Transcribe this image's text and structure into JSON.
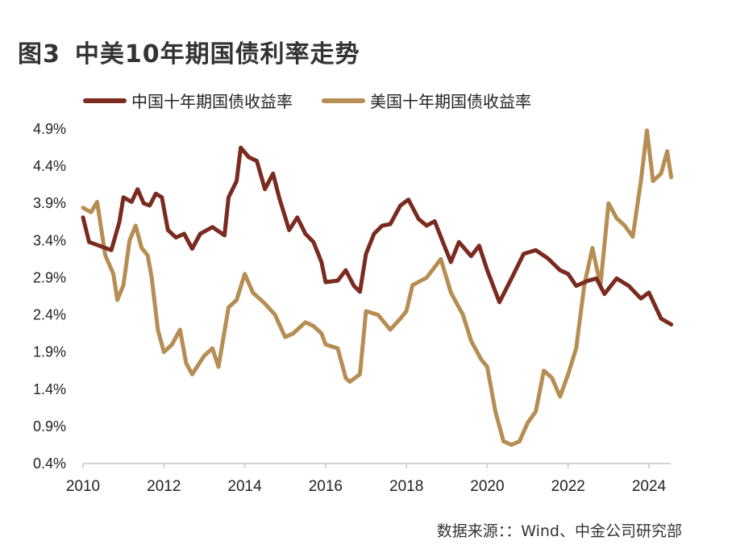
{
  "header": {
    "figure_label": "图3",
    "title": "中美10年期国债利率走势"
  },
  "source": "数据来源：：Wind、中金公司研究部",
  "chart_data": {
    "type": "line",
    "title": "中美10年期国债利率走势",
    "xlabel": "",
    "ylabel": "",
    "xlim": [
      2010,
      2024.55
    ],
    "ylim": [
      0.4,
      4.9
    ],
    "x_ticks": [
      2010,
      2012,
      2014,
      2016,
      2018,
      2020,
      2022,
      2024
    ],
    "x_tick_labels": [
      "2010",
      "2012",
      "2014",
      "2016",
      "2018",
      "2020",
      "2022",
      "2024"
    ],
    "y_ticks": [
      4.9,
      4.4,
      3.9,
      3.4,
      2.9,
      2.4,
      1.9,
      1.4,
      0.9,
      0.4
    ],
    "y_tick_labels": [
      "4.9%",
      "4.4%",
      "3.9%",
      "3.4%",
      "2.9%",
      "2.4%",
      "1.9%",
      "1.4%",
      "0.9%",
      "0.4%"
    ],
    "grid": false,
    "legend_position": "top",
    "series": [
      {
        "name": "中国十年期国债收益率",
        "color": "#7a2a1e",
        "x": [
          2010.0,
          2010.15,
          2010.4,
          2010.7,
          2010.9,
          2011.0,
          2011.2,
          2011.35,
          2011.5,
          2011.65,
          2011.8,
          2011.95,
          2012.1,
          2012.3,
          2012.5,
          2012.7,
          2012.9,
          2013.2,
          2013.5,
          2013.6,
          2013.8,
          2013.9,
          2014.1,
          2014.3,
          2014.5,
          2014.7,
          2014.85,
          2015.1,
          2015.3,
          2015.5,
          2015.7,
          2015.9,
          2016.0,
          2016.3,
          2016.5,
          2016.7,
          2016.85,
          2017.0,
          2017.2,
          2017.4,
          2017.6,
          2017.85,
          2018.05,
          2018.3,
          2018.5,
          2018.7,
          2018.9,
          2019.1,
          2019.3,
          2019.6,
          2019.8,
          2020.0,
          2020.3,
          2020.6,
          2020.9,
          2021.2,
          2021.5,
          2021.8,
          2022.0,
          2022.2,
          2022.5,
          2022.7,
          2022.9,
          2023.2,
          2023.5,
          2023.8,
          2024.0,
          2024.3,
          2024.55
        ],
        "values": [
          3.71,
          3.38,
          3.33,
          3.27,
          3.65,
          3.98,
          3.92,
          4.09,
          3.9,
          3.87,
          4.03,
          3.98,
          3.54,
          3.44,
          3.49,
          3.29,
          3.49,
          3.58,
          3.47,
          3.98,
          4.2,
          4.65,
          4.52,
          4.47,
          4.09,
          4.3,
          3.98,
          3.54,
          3.71,
          3.49,
          3.38,
          3.11,
          2.84,
          2.86,
          3.0,
          2.79,
          2.71,
          3.22,
          3.49,
          3.6,
          3.62,
          3.87,
          3.95,
          3.69,
          3.6,
          3.66,
          3.38,
          3.11,
          3.38,
          3.19,
          3.33,
          3.0,
          2.57,
          2.89,
          3.22,
          3.27,
          3.16,
          3.0,
          2.95,
          2.79,
          2.86,
          2.89,
          2.68,
          2.89,
          2.79,
          2.62,
          2.7,
          2.35,
          2.27
        ]
      },
      {
        "name": "美国十年期国债收益率",
        "color": "#b68d52",
        "x": [
          2010.0,
          2010.2,
          2010.35,
          2010.55,
          2010.75,
          2010.85,
          2011.0,
          2011.15,
          2011.3,
          2011.45,
          2011.6,
          2011.7,
          2011.85,
          2012.0,
          2012.2,
          2012.4,
          2012.55,
          2012.7,
          2013.0,
          2013.2,
          2013.35,
          2013.6,
          2013.8,
          2014.0,
          2014.2,
          2014.5,
          2014.75,
          2015.0,
          2015.2,
          2015.5,
          2015.7,
          2015.9,
          2016.0,
          2016.3,
          2016.5,
          2016.6,
          2016.85,
          2017.0,
          2017.3,
          2017.6,
          2017.85,
          2018.0,
          2018.15,
          2018.5,
          2018.85,
          2019.1,
          2019.4,
          2019.6,
          2019.85,
          2020.0,
          2020.2,
          2020.4,
          2020.6,
          2020.8,
          2021.0,
          2021.2,
          2021.4,
          2021.6,
          2021.8,
          2022.0,
          2022.2,
          2022.4,
          2022.6,
          2022.8,
          2023.0,
          2023.2,
          2023.4,
          2023.6,
          2023.8,
          2023.95,
          2024.1,
          2024.3,
          2024.45,
          2024.55
        ],
        "values": [
          3.84,
          3.78,
          3.92,
          3.2,
          2.95,
          2.6,
          2.8,
          3.4,
          3.6,
          3.3,
          3.2,
          2.9,
          2.2,
          1.9,
          2.0,
          2.2,
          1.75,
          1.6,
          1.85,
          1.95,
          1.7,
          2.5,
          2.6,
          2.95,
          2.7,
          2.55,
          2.4,
          2.1,
          2.15,
          2.3,
          2.25,
          2.15,
          2.0,
          1.95,
          1.55,
          1.5,
          1.6,
          2.45,
          2.4,
          2.2,
          2.35,
          2.45,
          2.8,
          2.9,
          3.15,
          2.7,
          2.4,
          2.05,
          1.8,
          1.7,
          1.1,
          0.7,
          0.65,
          0.7,
          0.95,
          1.1,
          1.65,
          1.55,
          1.3,
          1.6,
          1.95,
          2.8,
          3.3,
          2.8,
          3.9,
          3.7,
          3.6,
          3.45,
          4.2,
          4.88,
          4.2,
          4.3,
          4.6,
          4.25
        ]
      }
    ]
  }
}
